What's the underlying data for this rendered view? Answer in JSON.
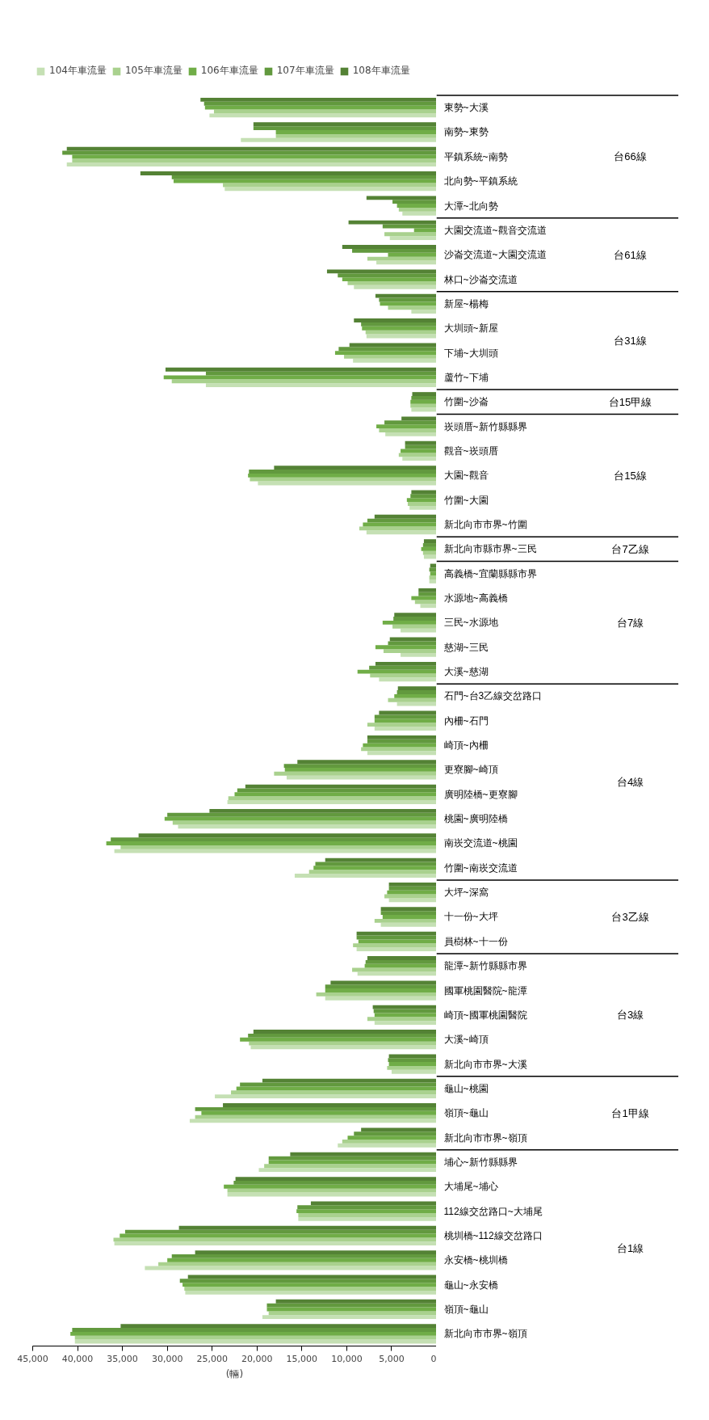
{
  "chart_data": {
    "type": "bar",
    "orientation": "horizontal",
    "xlabel": "(輛)",
    "legend": "top",
    "xlim": [
      45000,
      0
    ],
    "xticks": [
      {
        "value": 45000,
        "label": "45,000"
      },
      {
        "value": 40000,
        "label": "40,000"
      },
      {
        "value": 35000,
        "label": "35,000"
      },
      {
        "value": 30000,
        "label": "30,000"
      },
      {
        "value": 25000,
        "label": "25,000"
      },
      {
        "value": 20000,
        "label": "20,000"
      },
      {
        "value": 15000,
        "label": "15,000"
      },
      {
        "value": 10000,
        "label": "10,000"
      },
      {
        "value": 5000,
        "label": "5,000"
      },
      0
    ],
    "categories": [
      "東勢~大溪",
      "南勢~東勢",
      "平鎮系統~南勢",
      "北向勢~平鎮系統",
      "大潭~北向勢",
      "大園交流道~觀音交流道",
      "沙崙交流道~大園交流道",
      "林口~沙崙交流道",
      "新屋~楊梅",
      "大圳頭~新屋",
      "下埔~大圳頭",
      "蘆竹~下埔",
      "竹圍~沙崙",
      "崁頭厝~新竹縣縣界",
      "觀音~崁頭厝",
      "大園~觀音",
      "竹圍~大園",
      "新北向市市界~竹圍",
      "新北向市縣市界~三民",
      "高義橋~宜蘭縣縣市界",
      "水源地~高義橋",
      "三民~水源地",
      "慈湖~三民",
      "大溪~慈湖",
      "石門~台3乙線交岔路口",
      "內柵~石門",
      "崎頂~內柵",
      "更寮腳~崎頂",
      "廣明陸橋~更寮腳",
      "桃園~廣明陸橋",
      "南崁交流道~桃園",
      "竹圍~南崁交流道",
      "大坪~深窩",
      "十一份~大坪",
      "員樹林~十一份",
      "龍潭~新竹縣縣市界",
      "國軍桃園醫院~龍潭",
      "崎頂~國軍桃園醫院",
      "大溪~崎頂",
      "新北向市市界~大溪",
      "龜山~桃園",
      "嶺頂~龜山",
      "新北向市市界~嶺頂",
      "埔心~新竹縣縣界",
      "大埔尾~埔心",
      "112線交岔路口~大埔尾",
      "桃圳橋~112線交岔路口",
      "永安橋~桃圳橋",
      "龜山~永安橋",
      "嶺頂~龜山",
      "新北向市市界~嶺頂"
    ],
    "series": [
      {
        "name": "104年車流量",
        "color": "#c5e0b4",
        "values": [
          25300,
          21800,
          41200,
          23600,
          3800,
          5200,
          6700,
          9200,
          2800,
          7800,
          9300,
          25700,
          2800,
          5700,
          3800,
          19900,
          3000,
          7800,
          1400,
          800,
          1800,
          4000,
          4000,
          6400,
          4400,
          6900,
          7700,
          16700,
          23300,
          28800,
          35900,
          15800,
          5300,
          6200,
          8900,
          8800,
          12400,
          6900,
          20700,
          5000,
          24700,
          27500,
          11000,
          19800,
          23300,
          15400,
          35900,
          32500,
          28000,
          19400,
          40300
        ]
      },
      {
        "name": "105年車流量",
        "color": "#a9d18e",
        "values": [
          24800,
          17900,
          40600,
          23800,
          4200,
          5800,
          7700,
          9900,
          5400,
          7900,
          10300,
          29500,
          2900,
          6400,
          4200,
          20800,
          3200,
          8600,
          1500,
          800,
          2400,
          4900,
          5900,
          7400,
          5400,
          7700,
          8400,
          18100,
          23200,
          29400,
          35200,
          14200,
          5800,
          6900,
          9300,
          9400,
          13400,
          7700,
          20900,
          5500,
          22900,
          26900,
          10500,
          19200,
          23300,
          15400,
          36000,
          31000,
          28100,
          18700,
          40300
        ]
      },
      {
        "name": "106年車流量",
        "color": "#70ad47",
        "values": [
          25800,
          17900,
          40600,
          29300,
          4400,
          2500,
          5400,
          10500,
          6300,
          8300,
          11300,
          30400,
          2900,
          6700,
          4000,
          21000,
          3300,
          8200,
          1700,
          700,
          2800,
          6000,
          6800,
          8800,
          4700,
          6900,
          8200,
          16900,
          22500,
          30300,
          36800,
          13700,
          5500,
          6000,
          8700,
          8000,
          12400,
          6900,
          21900,
          5300,
          22300,
          26200,
          9900,
          18700,
          23700,
          15600,
          35300,
          30000,
          28300,
          18900,
          40800
        ]
      },
      {
        "name": "107年車流量",
        "color": "#62993e",
        "values": [
          25900,
          20400,
          41700,
          29500,
          4900,
          6000,
          9400,
          11000,
          6400,
          8400,
          10900,
          25700,
          2800,
          5800,
          3500,
          20900,
          2900,
          7700,
          1500,
          800,
          2000,
          4800,
          5400,
          7500,
          4400,
          6900,
          7700,
          17000,
          22200,
          30000,
          36300,
          13500,
          5300,
          6200,
          8900,
          7900,
          12400,
          7000,
          21000,
          5400,
          21900,
          26900,
          9200,
          18700,
          22600,
          15500,
          34700,
          29500,
          28600,
          18900,
          40600
        ]
      },
      {
        "name": "108年車流量",
        "color": "#548235",
        "values": [
          26300,
          20400,
          41200,
          33000,
          7800,
          9800,
          10500,
          12200,
          6800,
          9200,
          9700,
          30200,
          2700,
          3900,
          3500,
          18100,
          2800,
          6900,
          1400,
          700,
          2000,
          4700,
          5200,
          6800,
          4300,
          6400,
          7700,
          15500,
          21300,
          25300,
          33200,
          12400,
          5300,
          6200,
          8900,
          7700,
          11800,
          7100,
          20400,
          5300,
          19400,
          23800,
          8400,
          16300,
          22400,
          14000,
          28700,
          26900,
          27700,
          17900,
          35200
        ]
      }
    ],
    "annotations": [
      "台66線",
      "台61線",
      "台31線",
      "台15甲線",
      "台15線",
      "台7乙線",
      "台7線",
      "台4線",
      "台3乙線",
      "台3線",
      "台1甲線",
      "台1線"
    ]
  }
}
